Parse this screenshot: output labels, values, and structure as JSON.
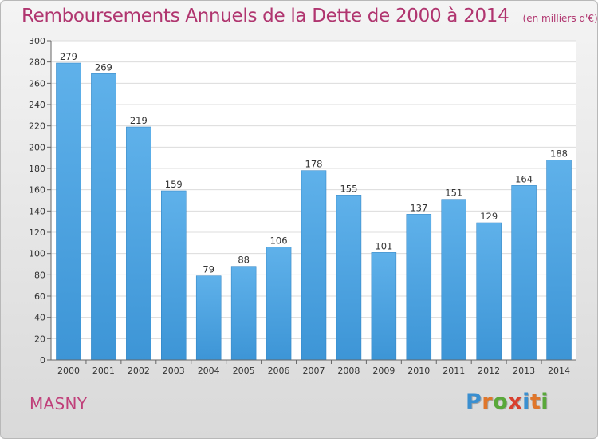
{
  "chart_data": {
    "type": "bar",
    "title": "Remboursements Annuels de la Dette de 2000 à 2014",
    "unit_label": "(en milliers d'€)",
    "categories": [
      "2000",
      "2001",
      "2002",
      "2003",
      "2004",
      "2005",
      "2006",
      "2007",
      "2008",
      "2009",
      "2010",
      "2011",
      "2012",
      "2013",
      "2014"
    ],
    "values": [
      279,
      269,
      219,
      159,
      79,
      88,
      106,
      178,
      155,
      101,
      137,
      151,
      129,
      164,
      188
    ],
    "ylim": [
      0,
      300
    ],
    "yticks": [
      0,
      20,
      40,
      60,
      80,
      100,
      120,
      140,
      160,
      180,
      200,
      220,
      240,
      260,
      280,
      300
    ],
    "grid": true,
    "bar_color": "#3d95d6",
    "bar_color_top": "#5fb1ea"
  },
  "commune": "MASNY",
  "logo": {
    "letters": [
      "P",
      "r",
      "o",
      "x",
      "i",
      "t",
      "i"
    ],
    "colors": [
      "#3a8fd0",
      "#e0762a",
      "#59a83a",
      "#d9402f",
      "#3a8fd0",
      "#e0762a",
      "#59a83a"
    ]
  }
}
